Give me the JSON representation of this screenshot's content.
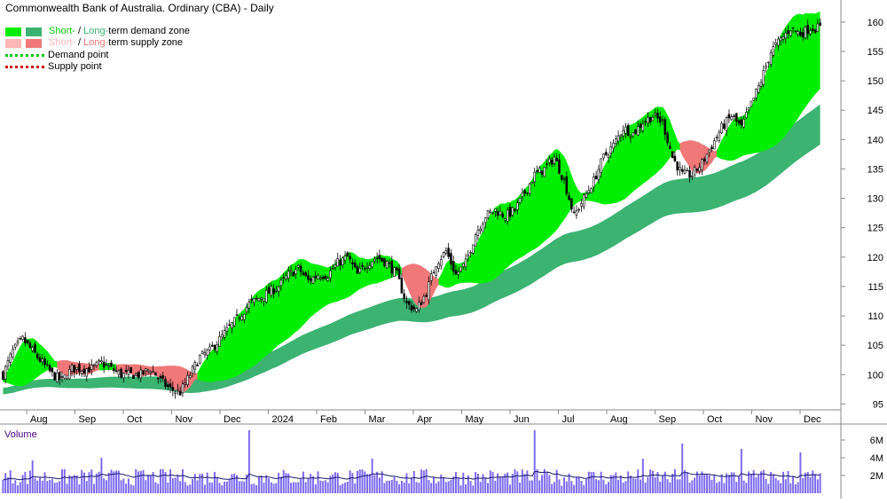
{
  "chart_data": {
    "type": "candlestick",
    "title": "Commonwealth Bank of Australia. Ordinary (CBA) - Daily",
    "legend": {
      "placement": "top-left",
      "items": [
        {
          "short": "Short-",
          "sep": " / ",
          "long": "Long-",
          "suffix": "term demand zone",
          "short_color": "#00ee00",
          "long_color": "#3cb371"
        },
        {
          "short": "Short-",
          "sep": " / ",
          "long": "Long-",
          "suffix": "term supply zone",
          "short_color": "#ffb6b6",
          "long_color": "#f07878"
        },
        {
          "label": "Demand point",
          "color": "#00cc00"
        },
        {
          "label": "Supply point",
          "color": "#cc0000"
        }
      ]
    },
    "x_tick_labels": [
      "Aug",
      "Sep",
      "Oct",
      "Nov",
      "Dec",
      "2024",
      "Feb",
      "Mar",
      "Apr",
      "May",
      "Jun",
      "Jul",
      "Aug",
      "Sep",
      "Oct",
      "Nov",
      "Dec"
    ],
    "price_axis": {
      "min": 94,
      "max": 163,
      "ticks": [
        95,
        100,
        105,
        110,
        115,
        120,
        125,
        130,
        135,
        140,
        145,
        150,
        155,
        160
      ]
    },
    "volume_axis": {
      "label": "Volume",
      "ticks": [
        "2M",
        "4M",
        "6M"
      ],
      "max_millions": 7.5,
      "tick_values_millions": [
        2,
        4,
        6
      ]
    },
    "price_anchors": [
      [
        0,
        100
      ],
      [
        4,
        104
      ],
      [
        8,
        106
      ],
      [
        12,
        104
      ],
      [
        16,
        102
      ],
      [
        20,
        100
      ],
      [
        24,
        99
      ],
      [
        28,
        101
      ],
      [
        32,
        101
      ],
      [
        36,
        101
      ],
      [
        40,
        102
      ],
      [
        44,
        101
      ],
      [
        48,
        100
      ],
      [
        52,
        100
      ],
      [
        56,
        100
      ],
      [
        60,
        101
      ],
      [
        64,
        99
      ],
      [
        68,
        97.5
      ],
      [
        72,
        97
      ],
      [
        76,
        100
      ],
      [
        80,
        103
      ],
      [
        84,
        104
      ],
      [
        88,
        106
      ],
      [
        92,
        108
      ],
      [
        96,
        110
      ],
      [
        100,
        112
      ],
      [
        104,
        113
      ],
      [
        108,
        114
      ],
      [
        112,
        115
      ],
      [
        116,
        117
      ],
      [
        120,
        118
      ],
      [
        124,
        116
      ],
      [
        128,
        117
      ],
      [
        132,
        117
      ],
      [
        136,
        119
      ],
      [
        140,
        120
      ],
      [
        144,
        117
      ],
      [
        148,
        119
      ],
      [
        152,
        120
      ],
      [
        156,
        119
      ],
      [
        160,
        117
      ],
      [
        164,
        112
      ],
      [
        168,
        111
      ],
      [
        172,
        114
      ],
      [
        176,
        119
      ],
      [
        180,
        121
      ],
      [
        184,
        117
      ],
      [
        188,
        119
      ],
      [
        192,
        124
      ],
      [
        196,
        127
      ],
      [
        200,
        128
      ],
      [
        204,
        127
      ],
      [
        208,
        128
      ],
      [
        212,
        131
      ],
      [
        216,
        134
      ],
      [
        220,
        135
      ],
      [
        224,
        137
      ],
      [
        228,
        133
      ],
      [
        232,
        127
      ],
      [
        236,
        130
      ],
      [
        240,
        133
      ],
      [
        244,
        137
      ],
      [
        248,
        139
      ],
      [
        252,
        142
      ],
      [
        256,
        141
      ],
      [
        260,
        143
      ],
      [
        264,
        144
      ],
      [
        268,
        143
      ],
      [
        272,
        137
      ],
      [
        276,
        134
      ],
      [
        280,
        134
      ],
      [
        284,
        136
      ],
      [
        288,
        139
      ],
      [
        292,
        142
      ],
      [
        296,
        144
      ],
      [
        300,
        142
      ],
      [
        304,
        146
      ],
      [
        308,
        150
      ],
      [
        312,
        155
      ],
      [
        316,
        157
      ],
      [
        320,
        159
      ],
      [
        324,
        158
      ],
      [
        328,
        159
      ],
      [
        332,
        159
      ]
    ],
    "bar_count": 333,
    "ema_short_period": 12,
    "ema_long_period": 34,
    "band_half_widths": {
      "short": 0.9,
      "long": 1.8
    },
    "volume_avg_millions": 1.9,
    "volume_spikes": [
      [
        100,
        7.1
      ],
      [
        216,
        7.1
      ],
      [
        276,
        5.6
      ],
      [
        300,
        5.0
      ],
      [
        324,
        4.6
      ],
      [
        40,
        4.0
      ],
      [
        150,
        3.9
      ],
      [
        260,
        3.9
      ],
      [
        12,
        3.7
      ]
    ],
    "colors": {
      "candle": "#000000",
      "short_demand": "#00ee00",
      "long_demand": "#3cb371",
      "short_supply": "#ffb6b6",
      "long_supply": "#f07878",
      "volume_bar": "#7b68ee",
      "volume_avg": "#1a1a6e",
      "axis": "#888888"
    }
  }
}
